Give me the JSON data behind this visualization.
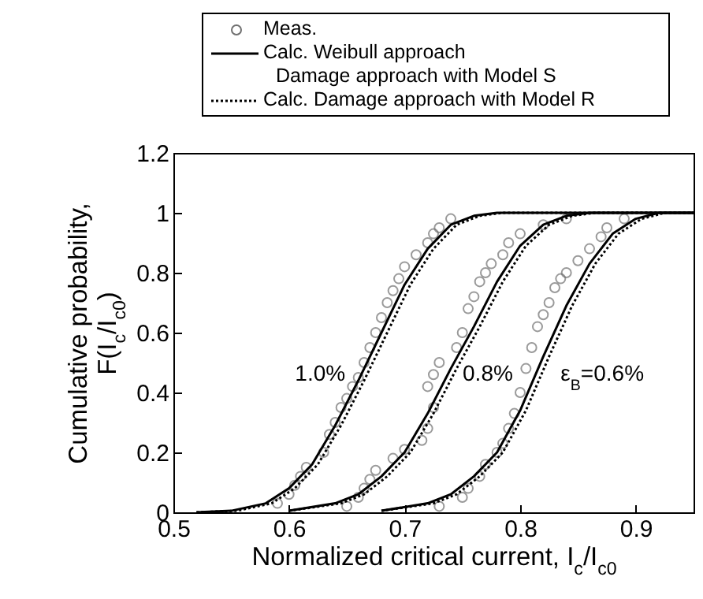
{
  "chart_data": {
    "type": "line",
    "xlabel": "Normalized critical current, I$_{c}$/I$_{c0}$",
    "ylabel": "Cumulative probability, F(I$_{c}$/I$_{c0}$)",
    "xlim": [
      0.5,
      0.95
    ],
    "xticks": [
      0.5,
      0.6,
      0.7,
      0.8,
      0.9
    ],
    "ylim": [
      0,
      1.2
    ],
    "yticks": [
      0,
      0.2,
      0.4,
      0.6,
      0.8,
      1,
      1.2
    ],
    "grid": false,
    "legend": "top",
    "series": [
      {
        "name": "Meas.",
        "type": "scatter",
        "marker": "circle",
        "color": "#707070",
        "x": [
          0.59,
          0.6,
          0.605,
          0.61,
          0.615,
          0.63,
          0.635,
          0.64,
          0.645,
          0.65,
          0.655,
          0.66,
          0.665,
          0.67,
          0.675,
          0.68,
          0.685,
          0.69,
          0.695,
          0.7,
          0.71,
          0.72,
          0.725,
          0.73,
          0.74,
          0.65,
          0.66,
          0.665,
          0.67,
          0.675,
          0.69,
          0.7,
          0.715,
          0.72,
          0.725,
          0.72,
          0.725,
          0.73,
          0.745,
          0.75,
          0.755,
          0.76,
          0.765,
          0.77,
          0.775,
          0.785,
          0.79,
          0.8,
          0.82,
          0.84,
          0.73,
          0.75,
          0.755,
          0.765,
          0.77,
          0.78,
          0.785,
          0.79,
          0.795,
          0.8,
          0.805,
          0.81,
          0.815,
          0.82,
          0.825,
          0.83,
          0.835,
          0.84,
          0.85,
          0.86,
          0.87,
          0.875,
          0.89
        ],
        "values": [
          0.03,
          0.06,
          0.09,
          0.12,
          0.15,
          0.2,
          0.26,
          0.3,
          0.35,
          0.38,
          0.42,
          0.45,
          0.5,
          0.55,
          0.6,
          0.65,
          0.7,
          0.74,
          0.78,
          0.82,
          0.86,
          0.9,
          0.93,
          0.95,
          0.98,
          0.02,
          0.05,
          0.08,
          0.11,
          0.14,
          0.18,
          0.21,
          0.24,
          0.28,
          0.35,
          0.42,
          0.46,
          0.5,
          0.55,
          0.6,
          0.68,
          0.72,
          0.77,
          0.8,
          0.83,
          0.86,
          0.9,
          0.93,
          0.96,
          0.98,
          0.02,
          0.05,
          0.08,
          0.12,
          0.16,
          0.2,
          0.23,
          0.28,
          0.33,
          0.4,
          0.48,
          0.55,
          0.62,
          0.66,
          0.7,
          0.75,
          0.78,
          0.8,
          0.84,
          0.88,
          0.92,
          0.95,
          0.98
        ]
      },
      {
        "name": "Calc. Weibull approach",
        "type": "line",
        "line_style": "solid",
        "color": "#000000",
        "x": [
          0.52,
          0.55,
          0.58,
          0.6,
          0.62,
          0.64,
          0.66,
          0.68,
          0.7,
          0.72,
          0.74,
          0.76,
          0.78,
          0.95
        ],
        "values": [
          0,
          0.005,
          0.03,
          0.08,
          0.16,
          0.29,
          0.44,
          0.6,
          0.76,
          0.88,
          0.96,
          0.99,
          1,
          1
        ]
      },
      {
        "type": "line",
        "line_style": "solid",
        "color": "#000000",
        "x": [
          0.6,
          0.64,
          0.66,
          0.68,
          0.7,
          0.72,
          0.74,
          0.76,
          0.78,
          0.8,
          0.82,
          0.84,
          0.86,
          0.95
        ],
        "values": [
          0.005,
          0.03,
          0.06,
          0.12,
          0.2,
          0.33,
          0.48,
          0.62,
          0.77,
          0.89,
          0.96,
          0.99,
          1,
          1
        ]
      },
      {
        "type": "line",
        "line_style": "solid",
        "color": "#000000",
        "x": [
          0.68,
          0.72,
          0.74,
          0.76,
          0.78,
          0.8,
          0.82,
          0.84,
          0.86,
          0.88,
          0.9,
          0.92,
          0.95
        ],
        "values": [
          0.005,
          0.03,
          0.06,
          0.12,
          0.2,
          0.34,
          0.52,
          0.69,
          0.83,
          0.93,
          0.98,
          1,
          1
        ]
      },
      {
        "name": "Calc. Damage approach with Model R",
        "type": "line",
        "line_style": "dotted",
        "color": "#000000",
        "x": [
          0.52,
          0.555,
          0.585,
          0.605,
          0.625,
          0.645,
          0.665,
          0.685,
          0.705,
          0.725,
          0.745,
          0.765,
          0.785,
          0.95
        ],
        "values": [
          0,
          0.005,
          0.03,
          0.08,
          0.16,
          0.29,
          0.44,
          0.6,
          0.76,
          0.88,
          0.96,
          0.99,
          1,
          1
        ]
      },
      {
        "type": "line",
        "line_style": "dotted",
        "color": "#000000",
        "x": [
          0.6,
          0.645,
          0.665,
          0.685,
          0.705,
          0.725,
          0.745,
          0.765,
          0.785,
          0.805,
          0.825,
          0.845,
          0.865,
          0.95
        ],
        "values": [
          0.005,
          0.03,
          0.06,
          0.12,
          0.2,
          0.33,
          0.48,
          0.62,
          0.77,
          0.89,
          0.96,
          0.99,
          1,
          1
        ]
      },
      {
        "type": "line",
        "line_style": "dotted",
        "color": "#000000",
        "x": [
          0.68,
          0.725,
          0.745,
          0.765,
          0.785,
          0.805,
          0.825,
          0.845,
          0.865,
          0.885,
          0.905,
          0.925,
          0.95
        ],
        "values": [
          0.005,
          0.03,
          0.06,
          0.12,
          0.2,
          0.34,
          0.52,
          0.69,
          0.83,
          0.93,
          0.98,
          1,
          1
        ]
      }
    ],
    "annotations": [
      "1.0%",
      "0.8%",
      "ε$_{B}$=0.6%",
      "Damage approach with Model S"
    ]
  }
}
